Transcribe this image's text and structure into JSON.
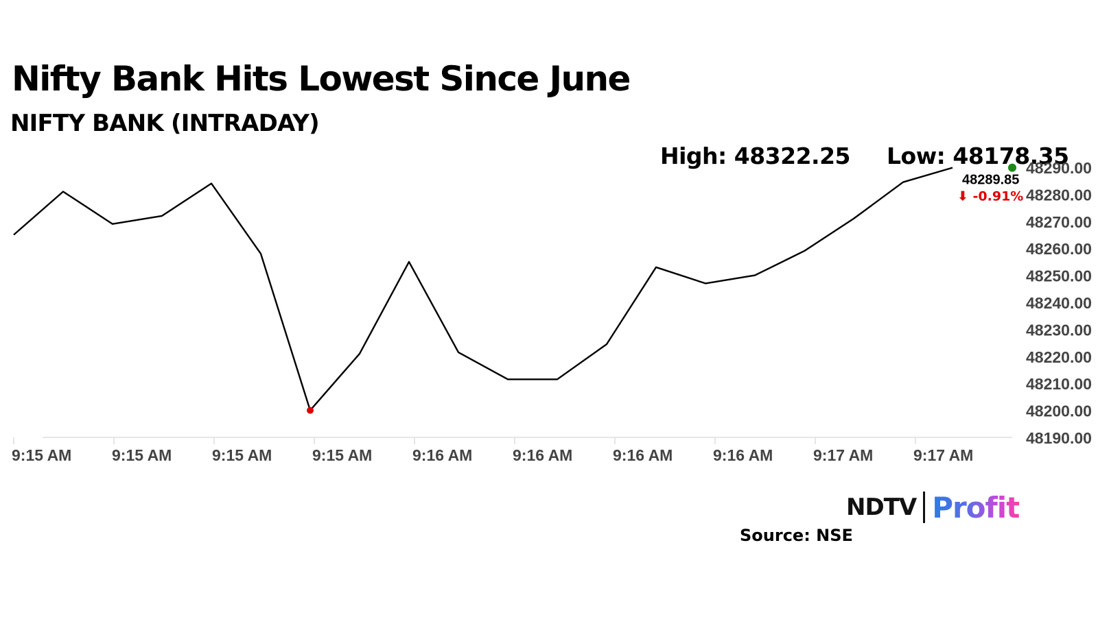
{
  "header": {
    "title": "Nifty Bank Hits Lowest Since June",
    "subtitle": "NIFTY BANK (INTRADAY)",
    "high_text": "High: 48322.25",
    "low_text": "Low: 48178.35"
  },
  "footer": {
    "logo_ndtv": "NDTV",
    "logo_profit": "Profit",
    "source": "Source: NSE"
  },
  "colors": {
    "line": "#000000",
    "low_marker": "#e00000",
    "last_marker": "#1a8a1a",
    "change_down": "#e00000",
    "grid": "#dddddd"
  },
  "chart_data": {
    "type": "line",
    "title": "Nifty Bank Hits Lowest Since June",
    "subtitle": "NIFTY BANK (INTRADAY)",
    "xlabel": "",
    "ylabel": "",
    "x_tick_labels": [
      "9:15 AM",
      "9:15 AM",
      "9:15 AM",
      "9:15 AM",
      "9:16 AM",
      "9:16 AM",
      "9:16 AM",
      "9:16 AM",
      "9:17 AM",
      "9:17 AM"
    ],
    "y_ticks": [
      48190,
      48200,
      48210,
      48220,
      48230,
      48240,
      48250,
      48260,
      48270,
      48280,
      48290
    ],
    "y_tick_labels": [
      "48190.00",
      "48200.00",
      "48210.00",
      "48220.00",
      "48230.00",
      "48240.00",
      "48250.00",
      "48260.00",
      "48270.00",
      "48280.00",
      "48290.00"
    ],
    "ylim": [
      48190,
      48290
    ],
    "grid": false,
    "series": [
      {
        "values": [
          48265,
          48281,
          48269,
          48272,
          48284,
          48258,
          48200,
          48221,
          48255,
          48221.5,
          48211.5,
          48211.5,
          48224.5,
          48253,
          48247,
          48250,
          48259,
          48271,
          48284.5,
          48289.85
        ]
      }
    ],
    "low_marker_index": 6,
    "last_value": "48289.85",
    "change": "⬇ -0.91%"
  }
}
